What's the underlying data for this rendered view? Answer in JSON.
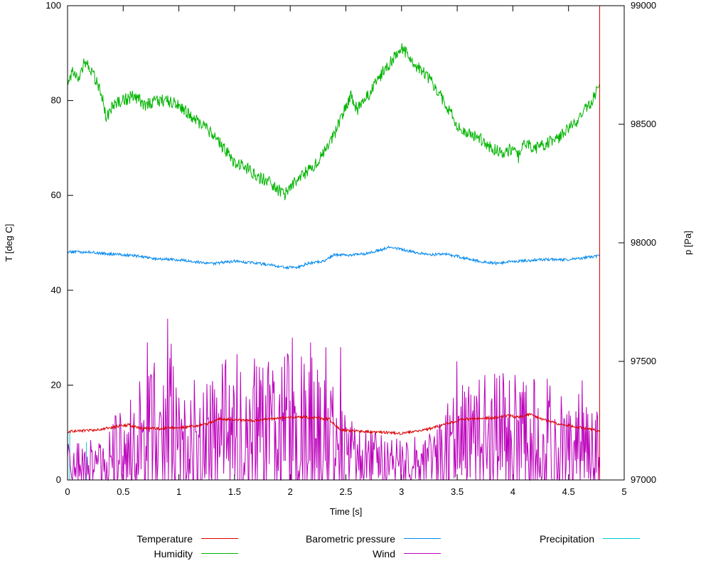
{
  "chart_data": {
    "type": "line",
    "title": "",
    "xlabel": "Time [s]",
    "ylabel_left": "T [deg C]",
    "ylabel_right": "p [Pa]",
    "xlim": [
      0,
      5
    ],
    "ylim_left": [
      0,
      100
    ],
    "ylim_right": [
      97000,
      99000
    ],
    "xticks": [
      0,
      0.5,
      1,
      1.5,
      2,
      2.5,
      3,
      3.5,
      4,
      4.5,
      5
    ],
    "yticks_left": [
      0,
      20,
      40,
      60,
      80,
      100
    ],
    "yticks_right": [
      97000,
      97500,
      98000,
      98500,
      99000
    ],
    "grid": false,
    "legend_position": "bottom",
    "draw_order": [
      4,
      3,
      2,
      1,
      0
    ],
    "series": [
      {
        "name": "Temperature",
        "color": "#dd0000",
        "axis": "left",
        "samples": 950,
        "tmax": 4.78,
        "seed": 11,
        "noise": 0.28,
        "anchors": [
          [
            0,
            10.2
          ],
          [
            0.15,
            10.4
          ],
          [
            0.3,
            10.7
          ],
          [
            0.45,
            11.3
          ],
          [
            0.55,
            11.6
          ],
          [
            0.65,
            10.9
          ],
          [
            0.8,
            10.8
          ],
          [
            0.95,
            11.0
          ],
          [
            1.1,
            11.2
          ],
          [
            1.25,
            11.8
          ],
          [
            1.35,
            12.9
          ],
          [
            1.5,
            12.7
          ],
          [
            1.65,
            12.5
          ],
          [
            1.8,
            12.8
          ],
          [
            1.95,
            13.1
          ],
          [
            2.1,
            13.3
          ],
          [
            2.25,
            13.0
          ],
          [
            2.35,
            12.8
          ],
          [
            2.45,
            10.6
          ],
          [
            2.6,
            10.3
          ],
          [
            2.75,
            10.1
          ],
          [
            2.9,
            10.0
          ],
          [
            3.0,
            9.8
          ],
          [
            3.1,
            10.2
          ],
          [
            3.25,
            10.8
          ],
          [
            3.4,
            11.8
          ],
          [
            3.55,
            12.8
          ],
          [
            3.7,
            13.0
          ],
          [
            3.85,
            13.1
          ],
          [
            3.95,
            13.6
          ],
          [
            4.05,
            13.2
          ],
          [
            4.15,
            13.9
          ],
          [
            4.25,
            12.9
          ],
          [
            4.4,
            11.9
          ],
          [
            4.55,
            11.3
          ],
          [
            4.65,
            10.9
          ],
          [
            4.78,
            10.3
          ]
        ],
        "extra_points": [
          [
            4.78,
            0
          ],
          [
            4.78,
            100
          ]
        ]
      },
      {
        "name": "Humidity",
        "color": "#00b400",
        "axis": "left",
        "samples": 950,
        "tmax": 4.78,
        "seed": 22,
        "noise": 1.3,
        "anchors": [
          [
            0,
            84
          ],
          [
            0.05,
            86
          ],
          [
            0.1,
            85
          ],
          [
            0.15,
            88
          ],
          [
            0.2,
            87
          ],
          [
            0.3,
            82
          ],
          [
            0.35,
            76
          ],
          [
            0.4,
            79
          ],
          [
            0.5,
            80
          ],
          [
            0.6,
            81
          ],
          [
            0.7,
            79
          ],
          [
            0.8,
            80
          ],
          [
            0.9,
            80
          ],
          [
            1.0,
            79
          ],
          [
            1.1,
            77
          ],
          [
            1.2,
            75
          ],
          [
            1.3,
            73
          ],
          [
            1.4,
            70
          ],
          [
            1.5,
            67
          ],
          [
            1.6,
            66
          ],
          [
            1.7,
            64
          ],
          [
            1.8,
            63
          ],
          [
            1.85,
            62
          ],
          [
            1.95,
            60
          ],
          [
            2.0,
            62
          ],
          [
            2.1,
            64
          ],
          [
            2.2,
            66
          ],
          [
            2.3,
            69
          ],
          [
            2.4,
            73
          ],
          [
            2.5,
            79
          ],
          [
            2.55,
            81
          ],
          [
            2.6,
            78
          ],
          [
            2.7,
            81
          ],
          [
            2.8,
            85
          ],
          [
            2.9,
            88
          ],
          [
            3.0,
            91
          ],
          [
            3.05,
            90
          ],
          [
            3.1,
            88
          ],
          [
            3.2,
            86
          ],
          [
            3.3,
            83
          ],
          [
            3.4,
            79
          ],
          [
            3.5,
            75
          ],
          [
            3.6,
            73
          ],
          [
            3.7,
            72
          ],
          [
            3.8,
            70
          ],
          [
            3.9,
            69
          ],
          [
            4.0,
            70
          ],
          [
            4.05,
            68
          ],
          [
            4.1,
            71
          ],
          [
            4.2,
            70
          ],
          [
            4.3,
            71
          ],
          [
            4.4,
            72
          ],
          [
            4.5,
            74
          ],
          [
            4.6,
            76
          ],
          [
            4.65,
            78
          ],
          [
            4.7,
            79
          ],
          [
            4.78,
            84
          ]
        ]
      },
      {
        "name": "Barometric pressure",
        "color": "#0088ee",
        "axis": "right",
        "samples": 950,
        "tmax": 4.78,
        "seed": 33,
        "noise": 6,
        "anchors": [
          [
            0,
            97962
          ],
          [
            0.2,
            97960
          ],
          [
            0.4,
            97952
          ],
          [
            0.6,
            97946
          ],
          [
            0.8,
            97932
          ],
          [
            1.0,
            97928
          ],
          [
            1.15,
            97920
          ],
          [
            1.3,
            97912
          ],
          [
            1.4,
            97918
          ],
          [
            1.5,
            97922
          ],
          [
            1.65,
            97916
          ],
          [
            1.8,
            97908
          ],
          [
            1.95,
            97898
          ],
          [
            2.05,
            97894
          ],
          [
            2.15,
            97912
          ],
          [
            2.3,
            97922
          ],
          [
            2.4,
            97950
          ],
          [
            2.5,
            97948
          ],
          [
            2.65,
            97952
          ],
          [
            2.8,
            97968
          ],
          [
            2.9,
            97984
          ],
          [
            3.0,
            97972
          ],
          [
            3.1,
            97962
          ],
          [
            3.25,
            97950
          ],
          [
            3.4,
            97952
          ],
          [
            3.55,
            97938
          ],
          [
            3.7,
            97922
          ],
          [
            3.85,
            97914
          ],
          [
            4.0,
            97922
          ],
          [
            4.15,
            97926
          ],
          [
            4.3,
            97930
          ],
          [
            4.45,
            97928
          ],
          [
            4.6,
            97934
          ],
          [
            4.75,
            97944
          ]
        ]
      },
      {
        "name": "Wind",
        "color": "#bb00bb",
        "axis": "left",
        "samples": 760,
        "tmax": 4.78,
        "seed": 44,
        "mode": "wind",
        "noise": 1.8,
        "anchors": [
          [
            0,
            3
          ],
          [
            0.35,
            3
          ],
          [
            0.45,
            6
          ],
          [
            0.6,
            8
          ],
          [
            0.75,
            9
          ],
          [
            0.9,
            11
          ],
          [
            1.0,
            9
          ],
          [
            1.2,
            8
          ],
          [
            1.4,
            9
          ],
          [
            1.6,
            10
          ],
          [
            1.8,
            9
          ],
          [
            2.0,
            10
          ],
          [
            2.2,
            10
          ],
          [
            2.35,
            9
          ],
          [
            2.5,
            5
          ],
          [
            2.7,
            4
          ],
          [
            2.9,
            3.5
          ],
          [
            3.1,
            3.5
          ],
          [
            3.3,
            3.5
          ],
          [
            3.45,
            7
          ],
          [
            3.6,
            8
          ],
          [
            3.8,
            8
          ],
          [
            4.0,
            8.5
          ],
          [
            4.2,
            8
          ],
          [
            4.4,
            7.5
          ],
          [
            4.6,
            6.5
          ],
          [
            4.78,
            5
          ]
        ],
        "spikes": [
          [
            0.72,
            29
          ],
          [
            0.9,
            34
          ],
          [
            0.95,
            24
          ],
          [
            1.28,
            20
          ],
          [
            1.45,
            20
          ],
          [
            1.7,
            24
          ],
          [
            1.95,
            26
          ],
          [
            2.02,
            30
          ],
          [
            2.1,
            26
          ],
          [
            2.18,
            29
          ],
          [
            2.32,
            28
          ],
          [
            2.45,
            28
          ],
          [
            3.5,
            25
          ],
          [
            3.55,
            20
          ],
          [
            3.88,
            22
          ],
          [
            3.97,
            21
          ],
          [
            4.12,
            20
          ],
          [
            4.62,
            21
          ]
        ]
      },
      {
        "name": "Precipitation",
        "color": "#00cccc",
        "axis": "left",
        "points": [
          [
            0,
            0
          ],
          [
            0.02,
            0
          ],
          [
            0.02,
            10
          ],
          [
            0.02,
            0
          ],
          [
            0.17,
            0
          ],
          [
            0.17,
            8
          ],
          [
            0.17,
            0
          ],
          [
            0.2,
            0
          ]
        ]
      }
    ]
  },
  "legend": {
    "order": [
      0,
      2,
      4,
      1,
      3
    ]
  }
}
